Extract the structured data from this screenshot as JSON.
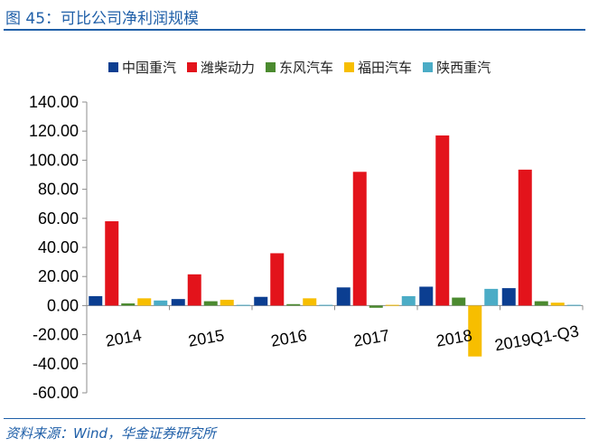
{
  "title": "图 45：可比公司净利润规模",
  "source": "资料来源：Wind，华金证券研究所",
  "chart_data": {
    "type": "bar",
    "categories": [
      "2014",
      "2015",
      "2016",
      "2017",
      "2018",
      "2019Q1-Q3"
    ],
    "series": [
      {
        "name": "中国重汽",
        "color": "#0b3e91",
        "values": [
          6.5,
          4.5,
          6.0,
          12.5,
          13.0,
          12.0
        ]
      },
      {
        "name": "潍柴动力",
        "color": "#e3131b",
        "values": [
          58.0,
          21.5,
          36.0,
          92.0,
          117.0,
          93.5
        ]
      },
      {
        "name": "东风汽车",
        "color": "#4b8a2f",
        "values": [
          1.5,
          3.0,
          1.0,
          -1.5,
          5.5,
          3.0
        ]
      },
      {
        "name": "福田汽车",
        "color": "#f7be00",
        "values": [
          5.0,
          4.0,
          5.0,
          0.5,
          -35.0,
          2.0
        ]
      },
      {
        "name": "陕西重汽",
        "color": "#4bacc6",
        "values": [
          3.5,
          0.5,
          0.5,
          6.5,
          11.5,
          0.5
        ]
      }
    ],
    "y_ticks": [
      "140.00",
      "120.00",
      "100.00",
      "80.00",
      "60.00",
      "40.00",
      "20.00",
      "0.00",
      "-20.00",
      "-40.00",
      "-60.00"
    ],
    "ylim": [
      -60,
      140
    ],
    "legend": "top",
    "grid": false
  }
}
